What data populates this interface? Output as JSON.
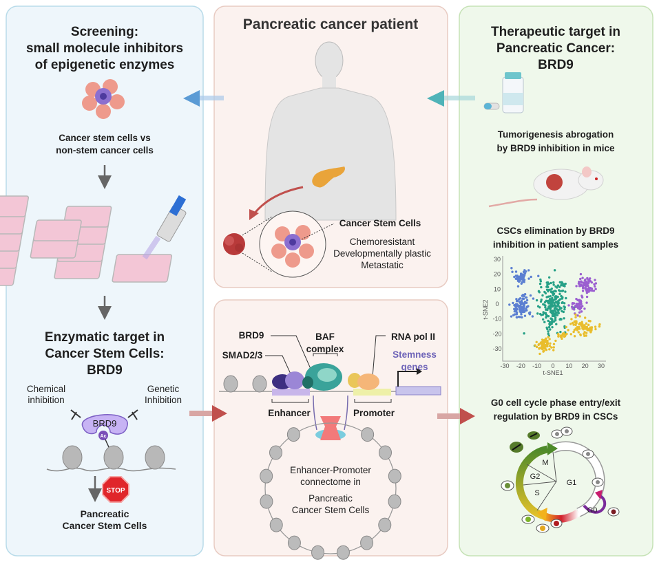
{
  "left_panel": {
    "title": [
      "Screening:",
      "small molecule inhibitors",
      "of epigenetic enzymes"
    ],
    "cells_caption": [
      "Cancer stem cells vs",
      "non-stem cancer cells"
    ],
    "target_title": [
      "Enzymatic target in",
      "Cancer Stem Cells:",
      "BRD9"
    ],
    "chemical_label": [
      "Chemical",
      "inhibition"
    ],
    "genetic_label": [
      "Genetic",
      "Inhibition"
    ],
    "brd9_label": "BRD9",
    "ac_label": "Ac",
    "stop_label": "STOP",
    "outcome": [
      "Pancreatic",
      "Cancer Stem Cells"
    ]
  },
  "patient_panel": {
    "title": "Pancreatic cancer patient",
    "csc_title": "Cancer Stem Cells",
    "csc_traits": [
      "Chemoresistant",
      "Developmentally plastic",
      "Metastatic"
    ]
  },
  "connectome_panel": {
    "brd9": "BRD9",
    "baf": [
      "BAF",
      "complex"
    ],
    "smad": "SMAD2/3",
    "rna_pol": "RNA pol II",
    "stemness": [
      "Stemness",
      "genes"
    ],
    "enhancer": "Enhancer",
    "promoter": "Promoter",
    "caption": [
      "Enhancer-Promoter",
      "connectome in",
      "Pancreatic",
      "Cancer Stem Cells"
    ]
  },
  "right_panel": {
    "title": [
      "Therapeutic target in",
      "Pancreatic Cancer:",
      "BRD9"
    ],
    "mice_caption": [
      "Tumorigenesis abrogation",
      "by BRD9 inhibition in mice"
    ],
    "csc_caption": [
      "CSCs elimination by BRD9",
      "inhibition in patient samples"
    ],
    "g0_caption": [
      "G0 cell cycle phase entry/exit",
      "regulation by BRD9 in CSCs"
    ],
    "cycle_phases": [
      "M",
      "G2",
      "S",
      "G1",
      "G0"
    ]
  },
  "colors": {
    "left_bg": "#eef6fb",
    "left_border": "#b8dbe9",
    "mid_bg": "#fbf2ef",
    "mid_border": "#e8cbc2",
    "right_bg": "#eff8eb",
    "right_border": "#c6e2b6",
    "arrow_blue": "#5b9bd5",
    "arrow_teal": "#4fb3b8",
    "arrow_red": "#c0504d",
    "purple": "#b9a4ec",
    "stemness": "#6f64b8"
  },
  "chart_data": {
    "type": "scatter",
    "xlabel": "t-SNE1",
    "ylabel": "t-SNE2",
    "xlim": [
      -30,
      30
    ],
    "ylim": [
      -35,
      30
    ],
    "xticks": [
      "-30",
      "-20",
      "-10",
      "0",
      "10",
      "20",
      "30"
    ],
    "yticks": [
      "30",
      "20",
      "10",
      "0",
      "-10",
      "-20",
      "-30"
    ],
    "clusters": [
      {
        "color": "#5b7fd1",
        "center": [
          -20,
          18
        ],
        "spread": [
          4,
          3
        ],
        "count": 55
      },
      {
        "color": "#5b7fd1",
        "center": [
          -20,
          -2
        ],
        "spread": [
          4.5,
          6
        ],
        "count": 110
      },
      {
        "color": "#26a086",
        "center": [
          0,
          -1
        ],
        "spread": [
          6,
          11
        ],
        "count": 220
      },
      {
        "color": "#26a086",
        "center": [
          6,
          13
        ],
        "spread": [
          2,
          1.5
        ],
        "count": 12
      },
      {
        "color": "#9b5fd0",
        "center": [
          21,
          12
        ],
        "spread": [
          4,
          5
        ],
        "count": 85
      },
      {
        "color": "#9b5fd0",
        "center": [
          15,
          -1
        ],
        "spread": [
          3,
          4
        ],
        "count": 50
      },
      {
        "color": "#e9bd2c",
        "center": [
          -5,
          -27
        ],
        "spread": [
          3.5,
          3.5
        ],
        "count": 70
      },
      {
        "color": "#e9bd2c",
        "center": [
          18,
          -15
        ],
        "spread": [
          6,
          4
        ],
        "count": 80
      },
      {
        "color": "#e9bd2c",
        "center": [
          6,
          -21
        ],
        "spread": [
          2.5,
          1.5
        ],
        "count": 18
      }
    ]
  }
}
